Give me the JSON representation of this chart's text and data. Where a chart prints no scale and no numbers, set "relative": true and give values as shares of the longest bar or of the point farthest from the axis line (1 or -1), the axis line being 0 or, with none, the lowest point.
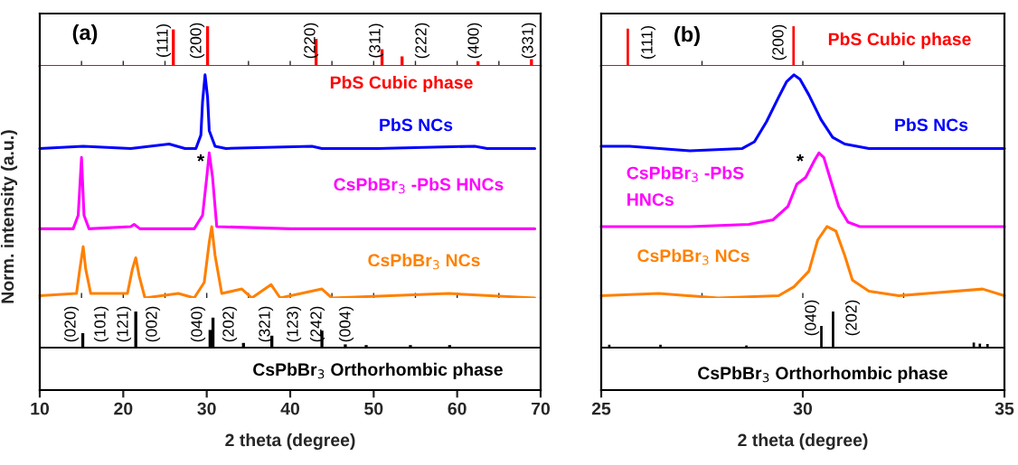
{
  "chart_data": [
    {
      "type": "bar",
      "relative": true,
      "xlim": [
        10,
        70
      ],
      "tick_labels": false,
      "x": [
        26.0,
        30.1,
        43.1,
        51.0,
        53.4,
        62.5,
        68.9
      ],
      "series": [
        {
          "color": "#ff0000",
          "values": [
            0.92,
            1,
            0.68,
            0.42,
            0.24,
            0.12,
            0.17
          ]
        }
      ],
      "xticks": [
        10,
        {
          "value": 15,
          "label": null
        },
        20,
        {
          "value": 25,
          "label": null
        },
        30,
        {
          "value": 35,
          "label": null
        },
        40,
        {
          "value": 45,
          "label": null
        },
        50,
        {
          "value": 55,
          "label": null
        },
        60,
        {
          "value": 65,
          "label": null
        },
        70
      ],
      "annotations": [
        "(a)",
        "PbS Cubic phase",
        "(111)",
        "(200)",
        "(220)",
        "(311)",
        "(222)",
        "(400)",
        "(331)"
      ]
    },
    {
      "type": "line",
      "relative": true,
      "xlim": [
        10,
        70
      ],
      "tick_labels": false,
      "ylabel": "Norm. intensity (a.u.)",
      "series": [
        {
          "name": "PbS NCs",
          "color": "#0000ff",
          "x": [
            10.0,
            15.2,
            20.9,
            25.5,
            27.4,
            28.7,
            29.3,
            29.5,
            29.8,
            30.1,
            30.3,
            31.0,
            32.3,
            42.6,
            43.8,
            50.5,
            62.1,
            63.6,
            69.3
          ],
          "values": [
            0.67,
            0.68,
            0.67,
            0.69,
            0.67,
            0.67,
            0.73,
            0.88,
            1.0,
            0.9,
            0.75,
            0.68,
            0.67,
            0.68,
            0.67,
            0.67,
            0.68,
            0.67,
            0.67
          ]
        },
        {
          "name": "CsPbBr$_{3}$ -PbS HNCs",
          "color": "#ff00ff",
          "x": [
            10.0,
            14.0,
            14.6,
            15.0,
            15.3,
            15.9,
            20.9,
            21.3,
            22.0,
            28.5,
            29.5,
            30.0,
            30.3,
            30.7,
            31.2,
            40.0,
            69.3
          ],
          "values": [
            0.31,
            0.31,
            0.37,
            0.63,
            0.37,
            0.31,
            0.32,
            0.33,
            0.31,
            0.31,
            0.37,
            0.54,
            0.65,
            0.54,
            0.32,
            0.31,
            0.31
          ]
        },
        {
          "name": "CsPbBr$_{3}$ NCs",
          "color": "#ff8000",
          "x": [
            10.0,
            14.4,
            14.8,
            15.2,
            15.5,
            16.1,
            20.5,
            21.1,
            21.5,
            21.9,
            22.6,
            26.6,
            28.5,
            29.7,
            30.3,
            30.6,
            31.0,
            31.8,
            34.2,
            35.4,
            37.7,
            38.8,
            43.8,
            45.0,
            59.0,
            69.3
          ],
          "values": [
            0.01,
            0.02,
            0.13,
            0.23,
            0.13,
            0.02,
            0.02,
            0.13,
            0.18,
            0.1,
            0.0,
            0.02,
            0.0,
            0.07,
            0.25,
            0.32,
            0.19,
            0.02,
            0.04,
            0.0,
            0.06,
            0.0,
            0.04,
            0.0,
            0.02,
            0.0
          ]
        }
      ],
      "xticks": [
        10,
        {
          "value": 15,
          "label": null
        },
        20,
        {
          "value": 25,
          "label": null
        },
        30,
        {
          "value": 35,
          "label": null
        },
        40,
        {
          "value": 45,
          "label": null
        },
        50,
        {
          "value": 55,
          "label": null
        },
        60,
        {
          "value": 65,
          "label": null
        },
        70
      ],
      "annotations": [
        "*"
      ]
    },
    {
      "type": "bar",
      "relative": true,
      "xlim": [
        10,
        70
      ],
      "tick_labels": "x",
      "xlabel": "2 theta (degree)",
      "xticks": [
        10,
        20,
        30,
        40,
        50,
        60,
        70
      ],
      "x": [
        15.15,
        21.5,
        30.4,
        30.75,
        34.4,
        37.8,
        43.8,
        46.6,
        49.1,
        54.4,
        59.1
      ],
      "series": [
        {
          "color": "#000000",
          "values": [
            0.4,
            1,
            0.49,
            0.83,
            0.13,
            0.33,
            0.47,
            0.09,
            0.07,
            0.07,
            0.07
          ]
        }
      ],
      "annotations": [
        "CsPbBr$_{3}$ Orthorhombic phase",
        "(020)",
        "(101)",
        "(121)",
        "(002)",
        "(040)",
        "(202)",
        "(321)",
        "(123)",
        "(242)",
        "(004)"
      ]
    },
    {
      "type": "bar",
      "relative": true,
      "xlim": [
        25,
        35
      ],
      "tick_labels": false,
      "x": [
        25.66,
        29.77
      ],
      "series": [
        {
          "color": "#ff0000",
          "values": [
            0.94,
            1
          ]
        }
      ],
      "xticks": [
        25,
        {
          "value": 27.5,
          "label": null
        },
        30,
        {
          "value": 32.5,
          "label": null
        },
        35
      ],
      "annotations": [
        "(b)",
        "PbS Cubic phase",
        "(111)",
        "(200)"
      ]
    },
    {
      "type": "line",
      "relative": true,
      "xlim": [
        25,
        35
      ],
      "tick_labels": false,
      "series": [
        {
          "name": "PbS NCs",
          "color": "#0000ff",
          "x": [
            25.0,
            25.7,
            27.2,
            28.5,
            28.8,
            29.1,
            29.4,
            29.6,
            29.78,
            29.93,
            30.15,
            30.45,
            30.74,
            31.04,
            31.64,
            35.0
          ],
          "values": [
            0.68,
            0.68,
            0.66,
            0.67,
            0.7,
            0.79,
            0.9,
            0.97,
            1.0,
            0.98,
            0.91,
            0.8,
            0.72,
            0.69,
            0.67,
            0.67
          ]
        },
        {
          "name": "CsPbBr$_{3}$ -PbS HNCs",
          "color": "#ff00ff",
          "x": [
            25.0,
            27.2,
            28.66,
            29.26,
            29.63,
            29.85,
            30.07,
            30.3,
            30.4,
            30.52,
            30.67,
            30.89,
            31.12,
            31.41,
            35.0
          ],
          "values": [
            0.32,
            0.32,
            0.33,
            0.35,
            0.41,
            0.51,
            0.54,
            0.62,
            0.65,
            0.63,
            0.54,
            0.41,
            0.34,
            0.32,
            0.32
          ]
        },
        {
          "name": "CsPbBr$_{3}$ NCs",
          "color": "#ff8000",
          "x": [
            25.0,
            26.43,
            27.9,
            29.4,
            29.78,
            30.15,
            30.37,
            30.6,
            30.82,
            31.04,
            31.23,
            31.64,
            32.38,
            34.46,
            35.0
          ],
          "values": [
            0.01,
            0.02,
            0.0,
            0.01,
            0.05,
            0.12,
            0.26,
            0.32,
            0.3,
            0.19,
            0.08,
            0.03,
            0.01,
            0.04,
            0.01
          ]
        }
      ],
      "xticks": [
        25,
        {
          "value": 27.5,
          "label": null
        },
        30,
        {
          "value": 32.5,
          "label": null
        },
        35
      ],
      "annotations": [
        "*"
      ]
    },
    {
      "type": "bar",
      "relative": true,
      "xlim": [
        25,
        35
      ],
      "tick_labels": "x",
      "xlabel": "2 theta (degree)",
      "xticks": [
        25,
        30,
        35
      ],
      "x": [
        25.2,
        26.47,
        28.6,
        30.46,
        30.75,
        34.24,
        34.39,
        34.58
      ],
      "series": [
        {
          "color": "#000000",
          "values": [
            0.08,
            0.08,
            0.06,
            0.6,
            1,
            0.14,
            0.11,
            0.1
          ]
        }
      ],
      "annotations": [
        "CsPbBr$_{3}$ Orthorhombic phase",
        "(040)",
        "(202)"
      ]
    }
  ]
}
